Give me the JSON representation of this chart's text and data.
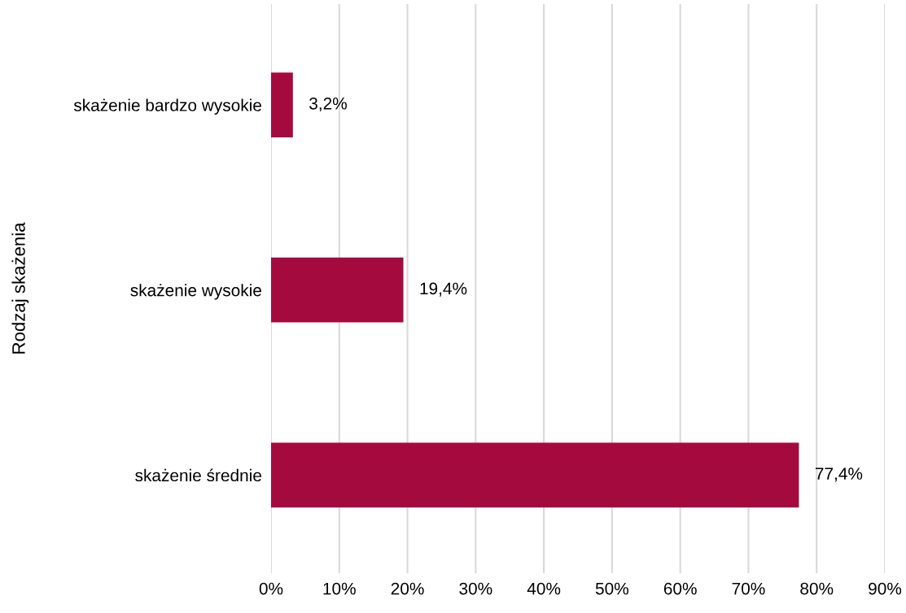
{
  "chart_data": {
    "type": "bar",
    "orientation": "horizontal",
    "ylabel": "Rodzaj skażenia",
    "categories": [
      "skażenie bardzo wysokie",
      "skażenie wysokie",
      "skażenie średnie"
    ],
    "values": [
      3.2,
      19.4,
      77.4
    ],
    "color": "#a50a3f",
    "value_labels": [
      "3,2%",
      "19,4%",
      "77,4%"
    ],
    "xlim": [
      0,
      90
    ],
    "xticks": [
      {
        "value": 0,
        "label": "0%"
      },
      {
        "value": 10,
        "label": "10%"
      },
      {
        "value": 20,
        "label": "20%"
      },
      {
        "value": 30,
        "label": "30%"
      },
      {
        "value": 40,
        "label": "40%"
      },
      {
        "value": 50,
        "label": "50%"
      },
      {
        "value": 60,
        "label": "60%"
      },
      {
        "value": 70,
        "label": "70%"
      },
      {
        "value": 80,
        "label": "80%"
      },
      {
        "value": 90,
        "label": "90%"
      }
    ],
    "grid": "x",
    "legend": false
  }
}
